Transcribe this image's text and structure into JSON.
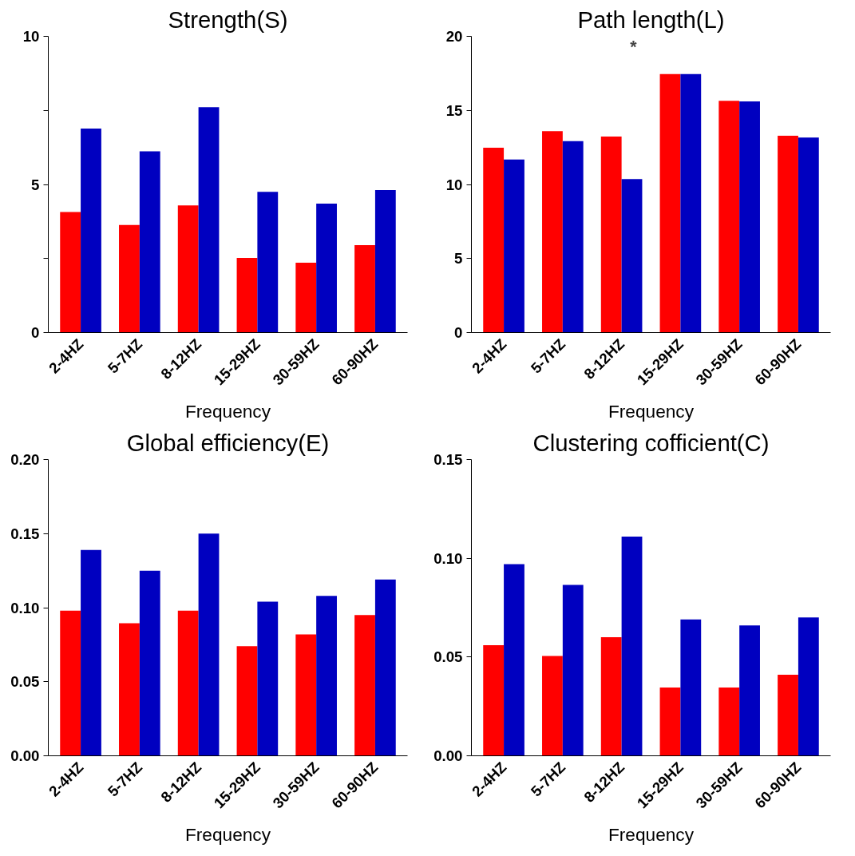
{
  "chart_data": [
    {
      "type": "bar",
      "title": "Strength(S)",
      "xlabel": "Frequency",
      "categories": [
        "2-4HZ",
        "5-7HZ",
        "8-12HZ",
        "15-29HZ",
        "30-59HZ",
        "60-90HZ"
      ],
      "ylim": [
        0,
        10
      ],
      "yticks": [
        0,
        {
          "value": 2.5,
          "label": null
        },
        5,
        {
          "value": 7.5,
          "label": null
        },
        10
      ],
      "grid": false,
      "series": [
        {
          "color": "#ff0000",
          "values": [
            4.07,
            3.63,
            4.29,
            2.52,
            2.36,
            2.95
          ]
        },
        {
          "color": "#0000c0",
          "values": [
            6.89,
            6.12,
            7.61,
            4.75,
            4.35,
            4.81
          ]
        }
      ]
    },
    {
      "type": "bar",
      "title": "Path length(L)",
      "xlabel": "Frequency",
      "categories": [
        "2-4HZ",
        "5-7HZ",
        "8-12HZ",
        "15-29HZ",
        "30-59HZ",
        "60-90HZ"
      ],
      "ylim": [
        0,
        20
      ],
      "yticks": [
        0,
        5,
        10,
        15,
        20
      ],
      "grid": false,
      "annotations": [
        "*"
      ],
      "series": [
        {
          "color": "#ff0000",
          "values": [
            12.48,
            13.6,
            13.23,
            17.45,
            15.65,
            13.29
          ]
        },
        {
          "color": "#0000c0",
          "values": [
            11.68,
            12.92,
            10.37,
            17.45,
            15.6,
            13.17
          ]
        }
      ]
    },
    {
      "type": "bar",
      "title": "Global efficiency(E)",
      "xlabel": "Frequency",
      "categories": [
        "2-4HZ",
        "5-7HZ",
        "8-12HZ",
        "15-29HZ",
        "30-59HZ",
        "60-90HZ"
      ],
      "ylim": [
        0,
        0.2
      ],
      "yticks": [
        {
          "value": 0,
          "label": "0.00"
        },
        0.05,
        {
          "value": 0.1,
          "label": "0.10"
        },
        0.15,
        {
          "value": 0.2,
          "label": "0.20"
        }
      ],
      "grid": false,
      "series": [
        {
          "color": "#ff0000",
          "values": [
            0.098,
            0.0895,
            0.098,
            0.074,
            0.082,
            0.095
          ]
        },
        {
          "color": "#0000c0",
          "values": [
            0.139,
            0.125,
            0.15,
            0.104,
            0.108,
            0.119
          ]
        }
      ]
    },
    {
      "type": "bar",
      "title": "Clustering cofficient(C)",
      "xlabel": "Frequency",
      "categories": [
        "2-4HZ",
        "5-7HZ",
        "8-12HZ",
        "15-29HZ",
        "30-59HZ",
        "60-90HZ"
      ],
      "ylim": [
        0,
        0.15
      ],
      "yticks": [
        {
          "value": 0,
          "label": "0.00"
        },
        0.05,
        {
          "value": 0.1,
          "label": "0.10"
        },
        0.15
      ],
      "grid": false,
      "series": [
        {
          "color": "#ff0000",
          "values": [
            0.056,
            0.0505,
            0.06,
            0.0346,
            0.0346,
            0.041
          ]
        },
        {
          "color": "#0000c0",
          "values": [
            0.097,
            0.0865,
            0.111,
            0.069,
            0.066,
            0.07
          ]
        }
      ]
    }
  ]
}
